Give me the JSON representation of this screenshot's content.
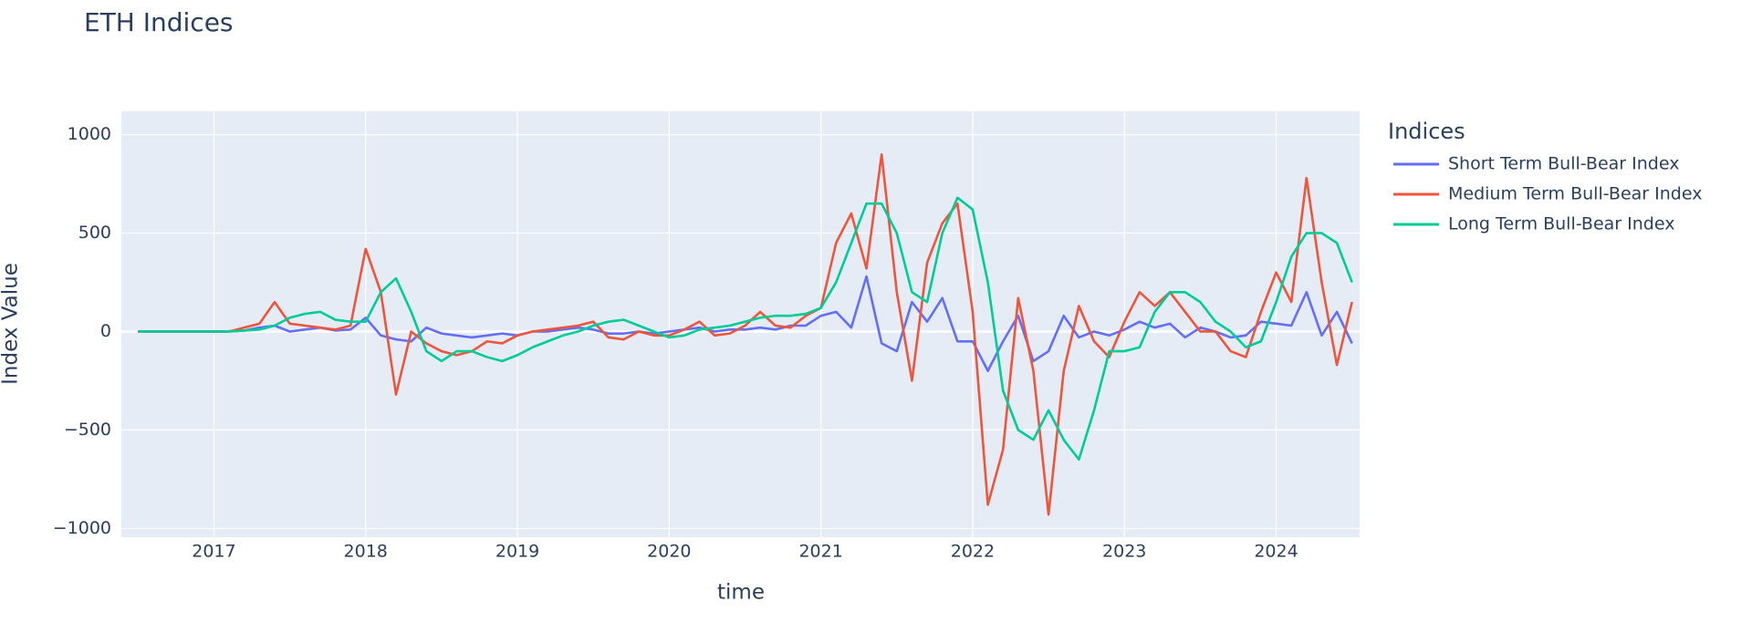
{
  "chart_data": {
    "type": "line",
    "title": "ETH Indices",
    "x_label": "time",
    "y_label": "Index Value",
    "legend_title": "Indices",
    "grid": true,
    "legend_position": "right",
    "x": [
      2016.5,
      2016.6,
      2016.7,
      2016.8,
      2016.9,
      2017.0,
      2017.1,
      2017.2,
      2017.3,
      2017.4,
      2017.5,
      2017.6,
      2017.7,
      2017.8,
      2017.9,
      2018.0,
      2018.1,
      2018.2,
      2018.3,
      2018.4,
      2018.5,
      2018.6,
      2018.7,
      2018.8,
      2018.9,
      2019.0,
      2019.1,
      2019.2,
      2019.3,
      2019.4,
      2019.5,
      2019.6,
      2019.7,
      2019.8,
      2019.9,
      2020.0,
      2020.1,
      2020.2,
      2020.3,
      2020.4,
      2020.5,
      2020.6,
      2020.7,
      2020.8,
      2020.9,
      2021.0,
      2021.1,
      2021.2,
      2021.3,
      2021.4,
      2021.5,
      2021.6,
      2021.7,
      2021.8,
      2021.9,
      2022.0,
      2022.1,
      2022.2,
      2022.3,
      2022.4,
      2022.5,
      2022.6,
      2022.7,
      2022.8,
      2022.9,
      2023.0,
      2023.1,
      2023.2,
      2023.3,
      2023.4,
      2023.5,
      2023.6,
      2023.7,
      2023.8,
      2023.9,
      2024.0,
      2024.1,
      2024.2,
      2024.3,
      2024.4,
      2024.5
    ],
    "series": [
      {
        "name": "Short Term Bull-Bear Index",
        "color": "#636efa",
        "values": [
          0,
          0,
          0,
          0,
          0,
          0,
          0,
          5,
          20,
          30,
          0,
          10,
          20,
          5,
          10,
          70,
          -20,
          -40,
          -50,
          20,
          -10,
          -20,
          -30,
          -20,
          -10,
          -20,
          0,
          0,
          10,
          20,
          10,
          -10,
          -10,
          0,
          -10,
          0,
          10,
          20,
          0,
          10,
          10,
          20,
          10,
          30,
          30,
          80,
          100,
          20,
          280,
          -60,
          -100,
          150,
          50,
          170,
          -50,
          -50,
          -200,
          -50,
          80,
          -150,
          -100,
          80,
          -30,
          0,
          -20,
          10,
          50,
          20,
          40,
          -30,
          20,
          0,
          -30,
          -20,
          50,
          40,
          30,
          200,
          -20,
          100,
          -60
        ]
      },
      {
        "name": "Medium Term Bull-Bear Index",
        "color": "#EF553B",
        "values": [
          0,
          0,
          0,
          0,
          0,
          0,
          0,
          20,
          40,
          150,
          40,
          30,
          20,
          10,
          30,
          420,
          200,
          -320,
          0,
          -60,
          -100,
          -120,
          -100,
          -50,
          -60,
          -20,
          0,
          10,
          20,
          30,
          50,
          -30,
          -40,
          0,
          -20,
          -20,
          10,
          50,
          -20,
          -10,
          30,
          100,
          30,
          20,
          80,
          120,
          450,
          600,
          320,
          900,
          200,
          -250,
          350,
          550,
          650,
          100,
          -880,
          -600,
          170,
          -200,
          -930,
          -200,
          130,
          -50,
          -130,
          50,
          200,
          130,
          200,
          100,
          0,
          0,
          -100,
          -130,
          100,
          300,
          150,
          780,
          250,
          -170,
          150
        ]
      },
      {
        "name": "Long Term Bull-Bear Index",
        "color": "#00cc96",
        "values": [
          0,
          0,
          0,
          0,
          0,
          0,
          0,
          5,
          10,
          30,
          70,
          90,
          100,
          60,
          50,
          50,
          200,
          270,
          100,
          -100,
          -150,
          -100,
          -100,
          -130,
          -150,
          -120,
          -80,
          -50,
          -20,
          0,
          30,
          50,
          60,
          30,
          0,
          -30,
          -20,
          10,
          20,
          30,
          50,
          70,
          80,
          80,
          90,
          120,
          250,
          450,
          650,
          650,
          500,
          200,
          150,
          500,
          680,
          620,
          250,
          -300,
          -500,
          -550,
          -400,
          -550,
          -650,
          -400,
          -100,
          -100,
          -80,
          100,
          200,
          200,
          150,
          50,
          0,
          -80,
          -50,
          150,
          380,
          500,
          500,
          450,
          250
        ]
      }
    ],
    "xlim": [
      2016.39,
      2024.55
    ],
    "xticks": [
      2017,
      2018,
      2019,
      2020,
      2021,
      2022,
      2023,
      2024
    ],
    "ylim": [
      -1045,
      1119
    ],
    "yticks": [
      {
        "value": -1000,
        "label": "−1000"
      },
      {
        "value": -500,
        "label": "−500"
      },
      0,
      500,
      1000
    ]
  }
}
